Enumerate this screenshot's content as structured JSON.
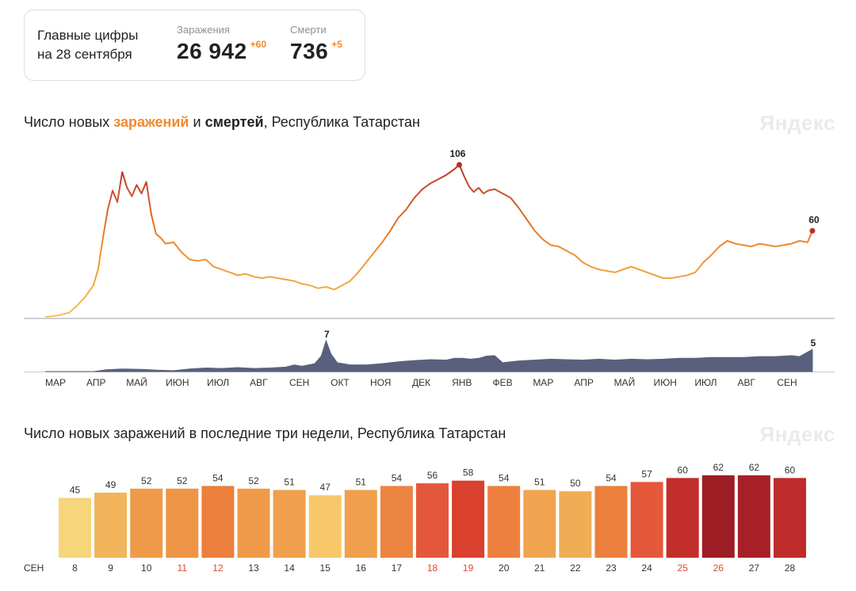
{
  "summary": {
    "label_line1": "Главные цифры",
    "label_line2": "на 28 сентября",
    "cases_label": "Заражения",
    "cases_value": "26 942",
    "cases_delta": "+60",
    "deaths_label": "Смерти",
    "deaths_value": "736",
    "deaths_delta": "+5"
  },
  "chart1": {
    "title_pre": "Число новых ",
    "title_cases": "заражений",
    "title_mid": " и ",
    "title_deaths": "смертей",
    "title_post": ", Республика Татарстан",
    "watermark": "Яндекс"
  },
  "chart2": {
    "title": "Число новых заражений в последние три недели, Республика Татарстан",
    "watermark": "Яндекс"
  },
  "colors": {
    "cases_low": "#f2c15a",
    "cases_mid": "#f08a2e",
    "cases_high": "#b83026",
    "deaths": "#59607e",
    "weekend_label": "#e04a2a",
    "axis": "#8b929c"
  },
  "chart_data": [
    {
      "type": "line",
      "title": "Число новых заражений и смертей, Республика Татарстан",
      "series": [
        {
          "name": "заражения",
          "peak_label": "106",
          "last_label": "60",
          "points": [
            [
              0,
              0
            ],
            [
              8,
              1
            ],
            [
              15,
              3
            ],
            [
              20,
              8
            ],
            [
              25,
              14
            ],
            [
              30,
              22
            ],
            [
              33,
              33
            ],
            [
              36,
              55
            ],
            [
              39,
              75
            ],
            [
              42,
              88
            ],
            [
              45,
              80
            ],
            [
              48,
              101
            ],
            [
              51,
              90
            ],
            [
              54,
              84
            ],
            [
              57,
              92
            ],
            [
              60,
              86
            ],
            [
              63,
              94
            ],
            [
              66,
              72
            ],
            [
              69,
              58
            ],
            [
              72,
              55
            ],
            [
              75,
              51
            ],
            [
              80,
              52
            ],
            [
              85,
              45
            ],
            [
              90,
              40
            ],
            [
              95,
              39
            ],
            [
              100,
              40
            ],
            [
              105,
              35
            ],
            [
              110,
              33
            ],
            [
              115,
              31
            ],
            [
              120,
              29
            ],
            [
              125,
              30
            ],
            [
              130,
              28
            ],
            [
              135,
              27
            ],
            [
              140,
              28
            ],
            [
              145,
              27
            ],
            [
              150,
              26
            ],
            [
              155,
              25
            ],
            [
              160,
              23
            ],
            [
              165,
              22
            ],
            [
              170,
              20
            ],
            [
              175,
              21
            ],
            [
              180,
              19
            ],
            [
              185,
              22
            ],
            [
              190,
              25
            ],
            [
              195,
              31
            ],
            [
              200,
              38
            ],
            [
              205,
              45
            ],
            [
              210,
              52
            ],
            [
              215,
              60
            ],
            [
              220,
              69
            ],
            [
              225,
              75
            ],
            [
              230,
              83
            ],
            [
              235,
              89
            ],
            [
              240,
              93
            ],
            [
              245,
              96
            ],
            [
              250,
              99
            ],
            [
              255,
              103
            ],
            [
              258,
              106
            ],
            [
              261,
              98
            ],
            [
              264,
              91
            ],
            [
              267,
              87
            ],
            [
              270,
              90
            ],
            [
              273,
              86
            ],
            [
              276,
              88
            ],
            [
              280,
              89
            ],
            [
              285,
              86
            ],
            [
              290,
              83
            ],
            [
              295,
              76
            ],
            [
              300,
              68
            ],
            [
              305,
              60
            ],
            [
              310,
              54
            ],
            [
              315,
              50
            ],
            [
              320,
              49
            ],
            [
              325,
              46
            ],
            [
              330,
              43
            ],
            [
              335,
              38
            ],
            [
              340,
              35
            ],
            [
              345,
              33
            ],
            [
              350,
              32
            ],
            [
              355,
              31
            ],
            [
              360,
              33
            ],
            [
              365,
              35
            ],
            [
              370,
              33
            ],
            [
              375,
              31
            ],
            [
              380,
              29
            ],
            [
              385,
              27
            ],
            [
              390,
              27
            ],
            [
              395,
              28
            ],
            [
              400,
              29
            ],
            [
              405,
              31
            ],
            [
              410,
              38
            ],
            [
              415,
              43
            ],
            [
              420,
              49
            ],
            [
              425,
              53
            ],
            [
              430,
              51
            ],
            [
              435,
              50
            ],
            [
              440,
              49
            ],
            [
              445,
              51
            ],
            [
              450,
              50
            ],
            [
              455,
              49
            ],
            [
              460,
              50
            ],
            [
              465,
              51
            ],
            [
              470,
              53
            ],
            [
              475,
              52
            ],
            [
              478,
              60
            ]
          ]
        },
        {
          "name": "смерти",
          "peak_label": "7",
          "last_label": "5",
          "points": [
            [
              0,
              0
            ],
            [
              30,
              0
            ],
            [
              38,
              0.4
            ],
            [
              48,
              0.6
            ],
            [
              60,
              0.5
            ],
            [
              70,
              0.3
            ],
            [
              80,
              0.2
            ],
            [
              90,
              0.6
            ],
            [
              100,
              0.8
            ],
            [
              110,
              0.7
            ],
            [
              120,
              0.9
            ],
            [
              130,
              0.7
            ],
            [
              140,
              0.8
            ],
            [
              150,
              1
            ],
            [
              155,
              1.5
            ],
            [
              160,
              1.2
            ],
            [
              168,
              1.8
            ],
            [
              172,
              3.5
            ],
            [
              175,
              7
            ],
            [
              178,
              4
            ],
            [
              182,
              2
            ],
            [
              190,
              1.5
            ],
            [
              200,
              1.5
            ],
            [
              210,
              1.8
            ],
            [
              220,
              2.2
            ],
            [
              230,
              2.5
            ],
            [
              240,
              2.7
            ],
            [
              250,
              2.6
            ],
            [
              255,
              3
            ],
            [
              260,
              3
            ],
            [
              265,
              2.8
            ],
            [
              270,
              3
            ],
            [
              275,
              3.5
            ],
            [
              280,
              3.6
            ],
            [
              285,
              2
            ],
            [
              295,
              2.4
            ],
            [
              305,
              2.6
            ],
            [
              315,
              2.8
            ],
            [
              325,
              2.7
            ],
            [
              335,
              2.6
            ],
            [
              345,
              2.8
            ],
            [
              355,
              2.6
            ],
            [
              365,
              2.8
            ],
            [
              375,
              2.7
            ],
            [
              385,
              2.8
            ],
            [
              395,
              3
            ],
            [
              405,
              3
            ],
            [
              415,
              3.2
            ],
            [
              425,
              3.2
            ],
            [
              435,
              3.2
            ],
            [
              445,
              3.4
            ],
            [
              455,
              3.4
            ],
            [
              465,
              3.6
            ],
            [
              470,
              3.4
            ],
            [
              478,
              5
            ]
          ]
        }
      ],
      "x_ticks": [
        "МАР",
        "АПР",
        "МАЙ",
        "ИЮН",
        "ИЮЛ",
        "АВГ",
        "СЕН",
        "ОКТ",
        "НОЯ",
        "ДЕК",
        "ЯНВ",
        "ФЕВ",
        "МАР",
        "АПР",
        "МАЙ",
        "ИЮН",
        "ИЮЛ",
        "АВГ",
        "СЕН"
      ],
      "x_tick_days": [
        0,
        25,
        48,
        78,
        103,
        133,
        164,
        188,
        217,
        245,
        276,
        307,
        335,
        366,
        396,
        427,
        457,
        488,
        519
      ],
      "grid": false,
      "legend": "none"
    },
    {
      "type": "bar",
      "title": "Число новых заражений в последние три недели, Республика Татарстан",
      "month_label": "СЕН",
      "categories": [
        "8",
        "9",
        "10",
        "11",
        "12",
        "13",
        "14",
        "15",
        "16",
        "17",
        "18",
        "19",
        "20",
        "21",
        "22",
        "23",
        "24",
        "25",
        "26",
        "27",
        "28"
      ],
      "values": [
        45,
        49,
        52,
        52,
        54,
        52,
        51,
        47,
        51,
        54,
        56,
        58,
        54,
        51,
        50,
        54,
        57,
        60,
        62,
        62,
        60
      ],
      "weekend_categories": [
        "11",
        "12",
        "18",
        "19",
        "25",
        "26"
      ],
      "bar_colors": [
        "#f7d57b",
        "#f1b45a",
        "#ef9a48",
        "#ee9446",
        "#ec7f3c",
        "#ef9a48",
        "#f0a04c",
        "#f6c86a",
        "#f0a04c",
        "#ec8442",
        "#e5573a",
        "#d9402e",
        "#ed803f",
        "#f0a450",
        "#f1ad55",
        "#ec7f3c",
        "#e6583a",
        "#c32d2a",
        "#9d1e24",
        "#a82027",
        "#bf2b2a"
      ],
      "ylim": [
        0,
        70
      ],
      "grid": false
    }
  ]
}
